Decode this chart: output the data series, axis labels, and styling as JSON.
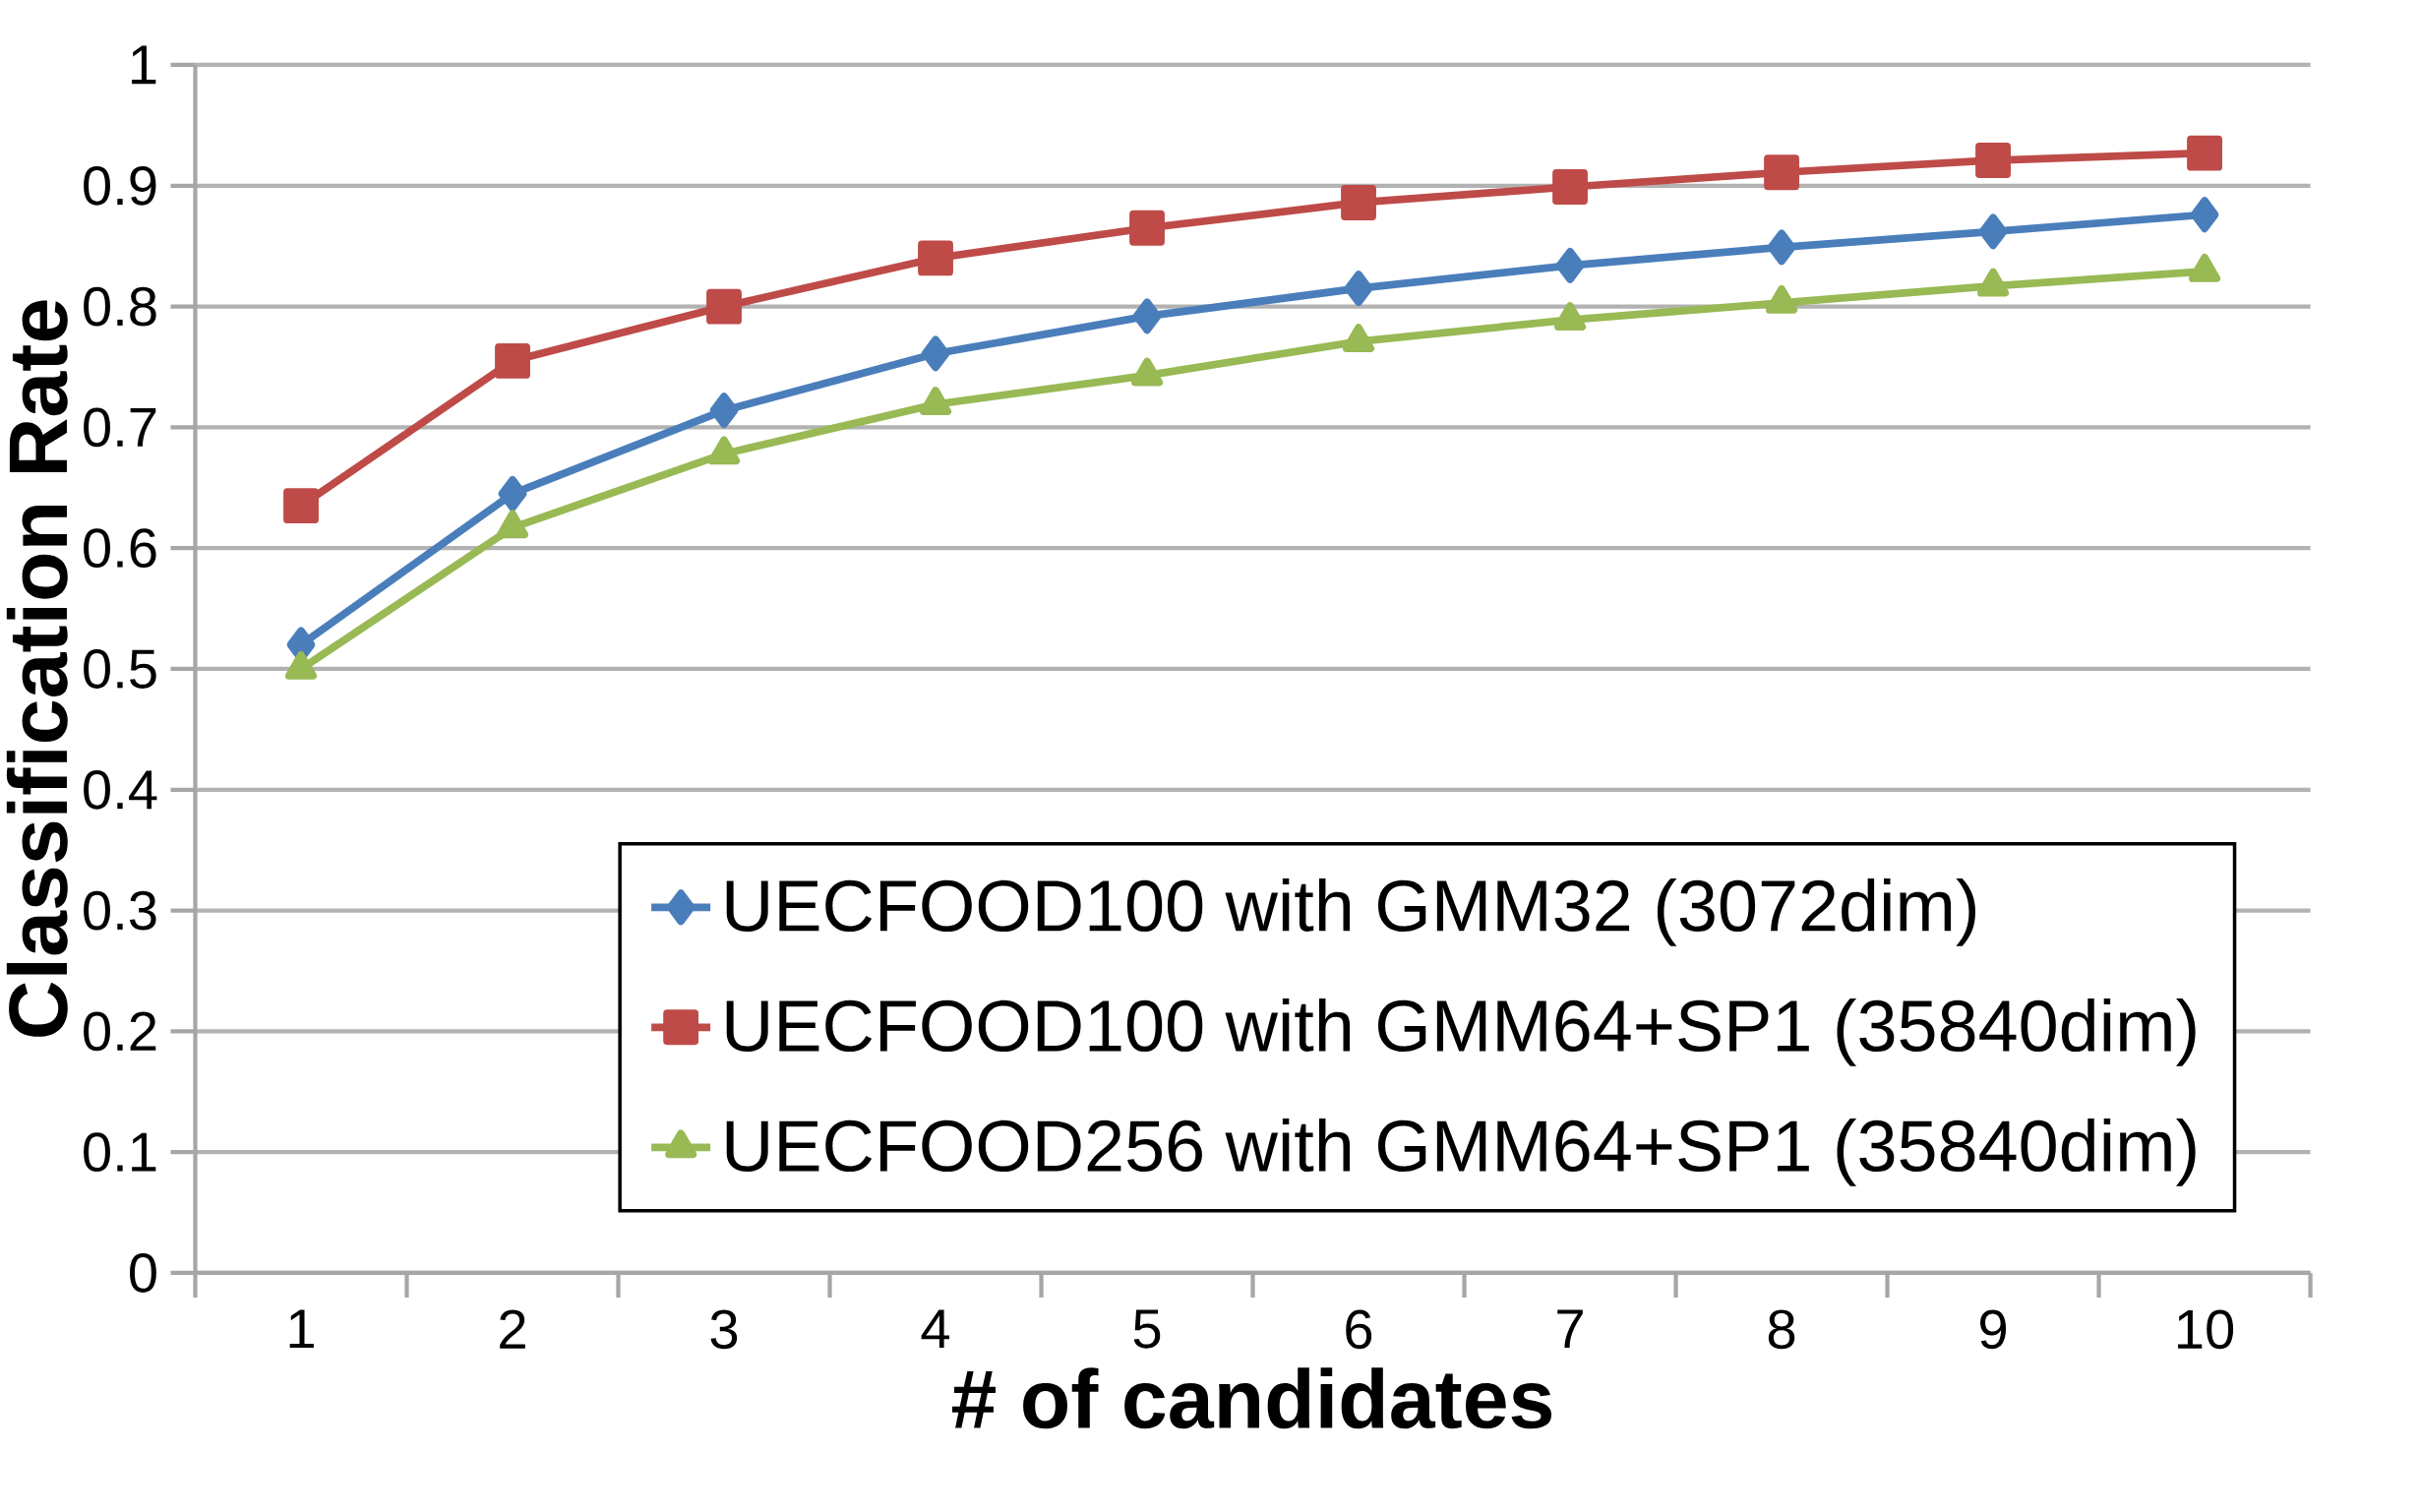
{
  "chart_data": {
    "type": "line",
    "xlabel": "# of candidates",
    "ylabel": "Classification Rate",
    "categories": [
      "1",
      "2",
      "3",
      "4",
      "5",
      "6",
      "7",
      "8",
      "9",
      "10"
    ],
    "series": [
      {
        "name": "UECFOOD100 with GMM32 (3072dim)",
        "color": "#4a7ebb",
        "marker": "diamond",
        "values": [
          0.52,
          0.645,
          0.714,
          0.761,
          0.792,
          0.815,
          0.834,
          0.849,
          0.862,
          0.876
        ]
      },
      {
        "name": "UECFOOD100 with GMM64+SP1 (35840dim)",
        "color": "#be4b48",
        "marker": "square",
        "values": [
          0.635,
          0.755,
          0.8,
          0.84,
          0.865,
          0.886,
          0.899,
          0.911,
          0.921,
          0.927
        ]
      },
      {
        "name": "UECFOOD256 with GMM64+SP1 (35840dim)",
        "color": "#98b954",
        "marker": "triangle",
        "values": [
          0.5,
          0.617,
          0.678,
          0.719,
          0.743,
          0.771,
          0.789,
          0.803,
          0.817,
          0.829
        ]
      }
    ],
    "ylim": [
      0,
      1
    ],
    "yticks": [
      0,
      0.1,
      0.2,
      0.3,
      0.4,
      0.5,
      0.6,
      0.7,
      0.8,
      0.9,
      1
    ],
    "grid": "y",
    "legend": "bottom right",
    "line_style": "solid"
  }
}
